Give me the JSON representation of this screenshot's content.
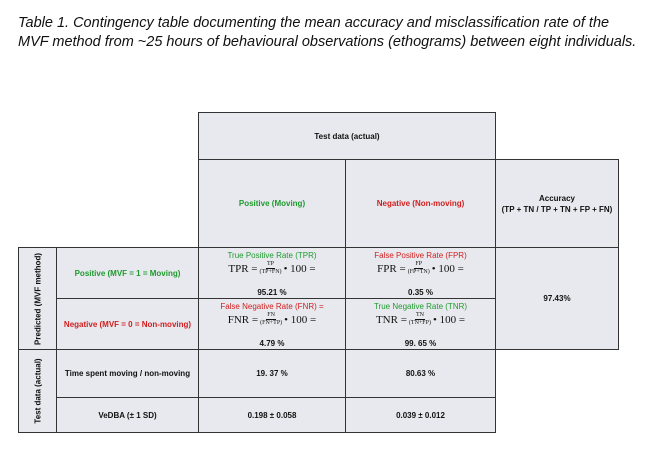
{
  "caption": "Table 1. Contingency table documenting the mean accuracy and misclassification rate of the MVF method from ~25 hours of behavioural observations (ethograms) between eight individuals.",
  "table": {
    "test_data_actual_header": "Test data (actual)",
    "col_positive": "Positive (Moving)",
    "col_negative": "Negative (Non-moving)",
    "accuracy_header_line1": "Accuracy",
    "accuracy_header_line2": "(TP + TN / TP + TN + FP + FN)",
    "predicted_label": "Predicted (MVF method)",
    "row_positive": "Positive (MVF = 1 = Moving)",
    "row_negative": "Negative (MVF = 0 = Non-moving)",
    "tpr": {
      "title": "True Positive Rate (TPR)",
      "lhs": "TPR =",
      "num": "TP",
      "den": "(TP+FN)",
      "rhs": "• 100 =",
      "value": "95.21 %"
    },
    "fpr": {
      "title": "False Positive Rate (FPR)",
      "lhs": "FPR =",
      "num": "FP",
      "den": "(FP+TN)",
      "rhs": "• 100 =",
      "value": "0.35 %"
    },
    "fnr": {
      "title": "False Negative Rate (FNR) =",
      "lhs": "FNR =",
      "num": "FN",
      "den": "(FN+TP)",
      "rhs": "• 100 =",
      "value": "4.79 %"
    },
    "tnr": {
      "title": "True Negative Rate (TNR)",
      "lhs": "TNR =",
      "num": "TN",
      "den": "(TN+FP)",
      "rhs": "• 100 =",
      "value": "99. 65 %"
    },
    "accuracy_value": "97.43%",
    "test_data_side_label": "Test data (actual)",
    "time_label": "Time spent moving / non-moving",
    "time_moving": "19. 37 %",
    "time_nonmoving": "80.63 %",
    "vedba_label": "VeDBA (± 1 SD)",
    "vedba_moving": "0.198 ± 0.058",
    "vedba_nonmoving": "0.039 ± 0.012"
  },
  "colors": {
    "green": "#1e9a2e",
    "red": "#d11e1e",
    "cell_background": "#e8e9ee"
  }
}
